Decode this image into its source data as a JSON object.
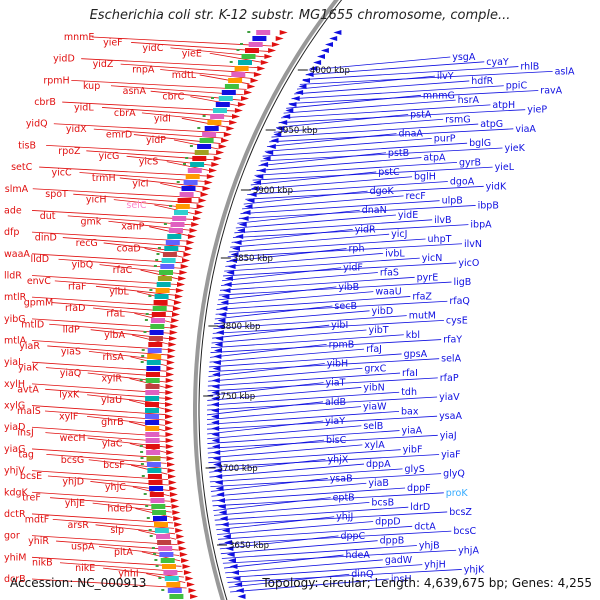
{
  "title": "Escherichia coli str. K-12 substr. MG1655 chromosome, comple...",
  "footer": {
    "accession": "Accession: NC_000913",
    "summary": "Topology: circular; Length: 4,639,675 bp; Genes: 4,255"
  },
  "colors": {
    "forward": "#e01010",
    "reverse": "#1010e0",
    "backbone": "#999999",
    "highlight_pink": "#ff88cc",
    "highlight_cyan": "#33aaff"
  },
  "kbp_marks": [
    "4000 kbp",
    "3950 kbp",
    "3900 kbp",
    "3850 kbp",
    "3800 kbp",
    "3750 kbp",
    "3700 kbp",
    "3650 kbp"
  ],
  "forward_genes": [
    "mnmE",
    "yieF",
    "yidC",
    "yieE",
    "yidD",
    "yidZ",
    "rnpA",
    "mdtL",
    "rpmH",
    "kup",
    "asnA",
    "cbrC",
    "cbrB",
    "yidL",
    "cbrA",
    "yidI",
    "yidQ",
    "yidX",
    "emrD",
    "yidP",
    "tisB",
    "rpoZ",
    "yicG",
    "yicS",
    "setC",
    "yicC",
    "trmH",
    "yicI",
    "slmA",
    "spoT",
    "yicH",
    "selC",
    "ade",
    "dut",
    "gmk",
    "xanP",
    "dfp",
    "dinD",
    "recG",
    "coaD",
    "waaA",
    "lldD",
    "yibQ",
    "rfaC",
    "lldR",
    "envC",
    "rfaF",
    "yibL",
    "mtlR",
    "gpmM",
    "rfaD",
    "rfaL",
    "yibG",
    "mtlD",
    "lldP",
    "yibA",
    "mtlA",
    "yiaR",
    "yiaS",
    "rhsA",
    "yiaL",
    "yiaK",
    "yiaQ",
    "xylR",
    "xylH",
    "avtA",
    "lyxK",
    "yiaU",
    "xylG",
    "malS",
    "xylF",
    "ghrB",
    "yiaD",
    "insJ",
    "wecH",
    "yiaC",
    "yiaG",
    "tag",
    "bcsG",
    "bcsF",
    "yhjV",
    "bcsE",
    "yhjD",
    "yhjC",
    "kdgK",
    "treF",
    "yhjE",
    "hdeD",
    "dctR",
    "mdtF",
    "arsR",
    "slp",
    "gor",
    "yhiR",
    "uspA",
    "pitA",
    "yhiM",
    "nikB",
    "nikE",
    "yhhI",
    "dcrB"
  ],
  "reverse_genes": [
    "ysgA",
    "cyaY",
    "rhlB",
    "aslA",
    "ilvY",
    "hdfR",
    "ppiC",
    "ravA",
    "mnmG",
    "hsrA",
    "atpH",
    "yieP",
    "pstA",
    "rsmG",
    "atpG",
    "viaA",
    "dnaA",
    "purP",
    "bglG",
    "yieK",
    "pstB",
    "atpA",
    "gyrB",
    "yieL",
    "pstC",
    "bglH",
    "dgoA",
    "yidK",
    "dgoK",
    "recF",
    "ulpB",
    "ibpB",
    "dnaN",
    "yidE",
    "ilvB",
    "ibpA",
    "yidR",
    "yicJ",
    "uhpT",
    "ilvN",
    "rph",
    "ivbL",
    "yicN",
    "yicO",
    "yidF",
    "rfaS",
    "pyrE",
    "ligB",
    "yibB",
    "waaU",
    "rfaZ",
    "rfaQ",
    "secB",
    "yibD",
    "mutM",
    "cysE",
    "yibI",
    "yibT",
    "kbl",
    "rfaY",
    "rpmB",
    "rfaJ",
    "gpsA",
    "selA",
    "yibH",
    "grxC",
    "rfaI",
    "rfaP",
    "yiaT",
    "yibN",
    "tdh",
    "yiaV",
    "aldB",
    "yiaW",
    "bax",
    "ysaA",
    "yiaY",
    "selB",
    "yiaA",
    "yiaJ",
    "bisC",
    "xylA",
    "yibF",
    "yiaF",
    "yhjX",
    "dppA",
    "glyS",
    "glyQ",
    "ysaB",
    "yiaB",
    "dppF",
    "proK",
    "eptB",
    "bcsB",
    "ldrD",
    "bcsZ",
    "yhjJ",
    "dppD",
    "dctA",
    "bcsC",
    "dppC",
    "dppB",
    "yhjB",
    "yhjA",
    "hdeA",
    "gadW",
    "yhjH",
    "yhjK",
    "dinQ",
    "insH"
  ],
  "highlighted_genes": {
    "selC": "pink",
    "proK": "cyan"
  }
}
